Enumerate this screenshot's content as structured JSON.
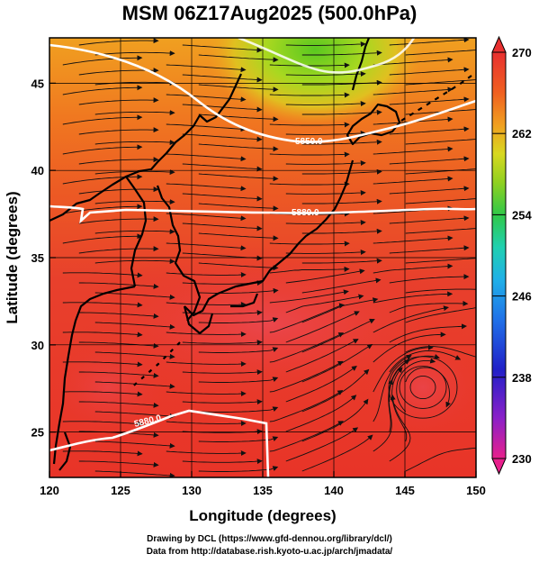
{
  "title": "MSM 06Z17Aug2025 (500.0hPa)",
  "axes": {
    "xlabel": "Longitude (degrees)",
    "ylabel": "Latitude  (degrees)",
    "x_ticks": [
      "120",
      "125",
      "130",
      "135",
      "140",
      "145",
      "150"
    ],
    "y_ticks": [
      "25",
      "30",
      "35",
      "40",
      "45"
    ],
    "lon_range": [
      120,
      150
    ],
    "lat_range": [
      22.4,
      47.6
    ]
  },
  "colorbar": {
    "ticks": [
      "270",
      "262",
      "254",
      "246",
      "238",
      "230"
    ],
    "range": [
      230,
      270
    ],
    "colors": [
      "#e8208c",
      "#8a20c8",
      "#2020c8",
      "#2070e8",
      "#20b0e8",
      "#20d0b0",
      "#30c848",
      "#90d020",
      "#d8d820",
      "#f0a020",
      "#f06020",
      "#e83030"
    ]
  },
  "contours": [
    {
      "label": "5820.0",
      "level": 5820
    },
    {
      "label": "5850.0",
      "level": 5850
    },
    {
      "label": "5880.0",
      "level": 5880
    }
  ],
  "credits": {
    "line1": "Drawing by DCL (https://www.gfd-dennou.org/library/dcl/)",
    "line2": "Data from http://database.rish.kyoto-u.ac.jp/arch/jmadata/"
  }
}
